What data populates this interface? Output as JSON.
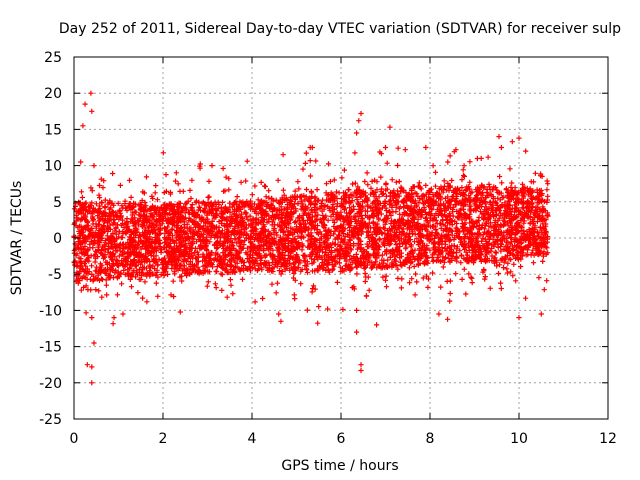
{
  "chart_data": {
    "type": "scatter",
    "title": "Day 252 of 2011, Sidereal Day-to-day VTEC variation (SDTVAR) for receiver sulp",
    "xlabel": "GPS time / hours",
    "ylabel": "SDTVAR / TECUs",
    "xlim": [
      0,
      12
    ],
    "ylim": [
      -25,
      25
    ],
    "xticks": [
      0,
      2,
      4,
      6,
      8,
      10,
      12
    ],
    "yticks": [
      -25,
      -20,
      -15,
      -10,
      -5,
      0,
      5,
      10,
      15,
      20,
      25
    ],
    "grid": true,
    "marker": "+",
    "color": "#ff0000",
    "series": [
      {
        "name": "SDTVAR",
        "x_range": [
          0.0,
          10.65
        ],
        "band_center": [
          [
            0.0,
            -0.5
          ],
          [
            2.0,
            -0.2
          ],
          [
            4.0,
            0.3
          ],
          [
            6.0,
            1.0
          ],
          [
            8.0,
            1.8
          ],
          [
            10.0,
            2.0
          ],
          [
            10.65,
            2.2
          ]
        ],
        "band_halfwidth": [
          [
            0.0,
            5.5
          ],
          [
            2.0,
            5.0
          ],
          [
            4.0,
            5.0
          ],
          [
            6.0,
            5.5
          ],
          [
            8.0,
            5.5
          ],
          [
            10.0,
            5.0
          ],
          [
            10.65,
            4.5
          ]
        ],
        "outliers": [
          {
            "x": 0.38,
            "y": 20.0
          },
          {
            "x": 0.25,
            "y": 18.5
          },
          {
            "x": 0.4,
            "y": 17.5
          },
          {
            "x": 0.2,
            "y": 15.5
          },
          {
            "x": 0.15,
            "y": 10.5
          },
          {
            "x": 0.45,
            "y": 10.0
          },
          {
            "x": 0.3,
            "y": -17.5
          },
          {
            "x": 0.4,
            "y": -17.8
          },
          {
            "x": 0.4,
            "y": -20.0
          },
          {
            "x": 0.45,
            "y": -14.5
          },
          {
            "x": 0.4,
            "y": -11.0
          },
          {
            "x": 0.9,
            "y": -11.0
          },
          {
            "x": 6.45,
            "y": 17.2
          },
          {
            "x": 6.4,
            "y": 16.2
          },
          {
            "x": 6.35,
            "y": 14.5
          },
          {
            "x": 6.45,
            "y": -17.5
          },
          {
            "x": 6.45,
            "y": -18.3
          },
          {
            "x": 6.35,
            "y": -13.0
          },
          {
            "x": 6.35,
            "y": -10.0
          },
          {
            "x": 6.8,
            "y": -12.0
          },
          {
            "x": 7.1,
            "y": 15.3
          },
          {
            "x": 7.0,
            "y": 12.5
          },
          {
            "x": 4.7,
            "y": 11.5
          },
          {
            "x": 4.6,
            "y": -10.5
          },
          {
            "x": 4.65,
            "y": -11.5
          },
          {
            "x": 5.7,
            "y": -9.8
          },
          {
            "x": 9.55,
            "y": 14.0
          },
          {
            "x": 9.85,
            "y": 13.3
          },
          {
            "x": 10.0,
            "y": 13.8
          },
          {
            "x": 10.15,
            "y": 12.0
          },
          {
            "x": 9.15,
            "y": 11.0
          },
          {
            "x": 8.4,
            "y": 10.5
          },
          {
            "x": 10.0,
            "y": -11.0
          },
          {
            "x": 10.5,
            "y": -10.5
          },
          {
            "x": 8.2,
            "y": -10.5
          },
          {
            "x": 3.1,
            "y": 10.0
          },
          {
            "x": 5.2,
            "y": 10.3
          },
          {
            "x": 1.1,
            "y": -10.5
          },
          {
            "x": 2.3,
            "y": 9.0
          }
        ]
      }
    ]
  }
}
